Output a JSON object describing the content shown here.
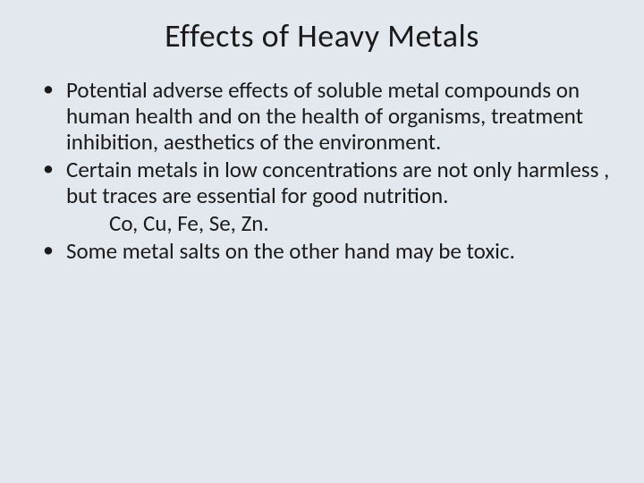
{
  "slide": {
    "background_color": "#e3e8ef",
    "text_color": "#1a1a1a",
    "title": {
      "text": "Effects of Heavy Metals",
      "fontsize": 36,
      "fontweight": 400
    },
    "body_fontsize": 25,
    "body_lineheight": 1.16,
    "bullets": [
      "Potential adverse effects of soluble metal compounds on human health and on the health of organisms, treatment inhibition, aesthetics of the environment.",
      "Certain metals in low concentrations are not only harmless , but traces are essential for good nutrition.",
      "Some metal salts on the other hand may be toxic."
    ],
    "sub_line": "Co, Cu, Fe, Se, Zn."
  }
}
